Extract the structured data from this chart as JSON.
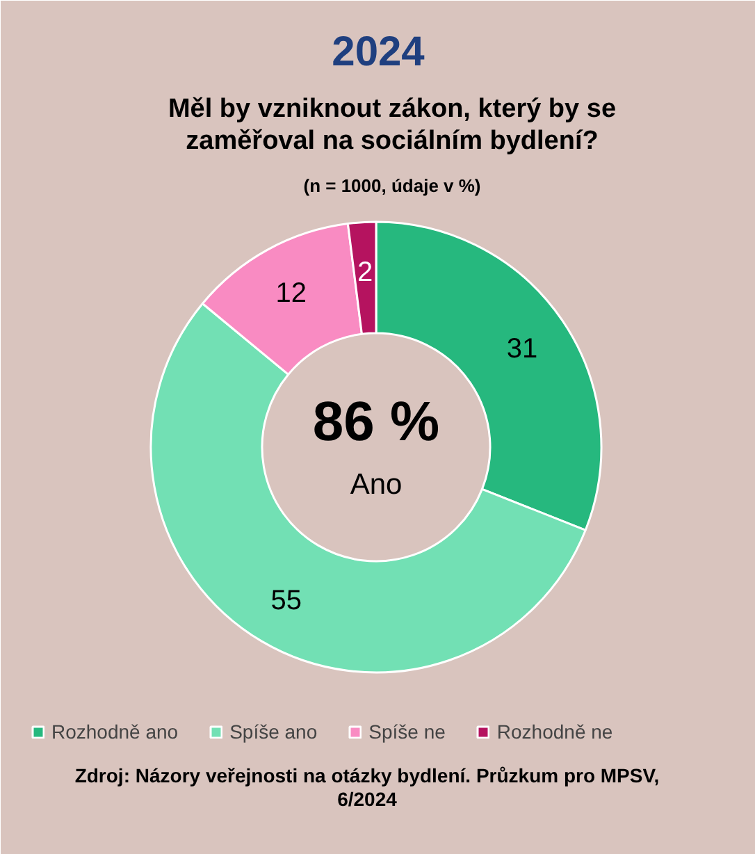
{
  "chart_data": {
    "type": "donut",
    "title": "2024",
    "subtitle": "Měl by vzniknout zákon, který by se zaměřoval na sociálním bydlení?",
    "annotations": [
      "(n = 1000, údaje v %)",
      "86 %",
      "Ano",
      "Zdroj: Názory veřejnosti na otázky bydlení. Průzkum pro MPSV, 6/2024"
    ],
    "categories": [
      "Rozhodně ano",
      "Spíše ano",
      "Spíše ne",
      "Rozhodně ne"
    ],
    "values": [
      31,
      55,
      12,
      2
    ],
    "colors": [
      "#26b87e",
      "#72e0b4",
      "#f98bc2",
      "#b5135f"
    ],
    "data_labels": true,
    "legend": "bottom"
  }
}
